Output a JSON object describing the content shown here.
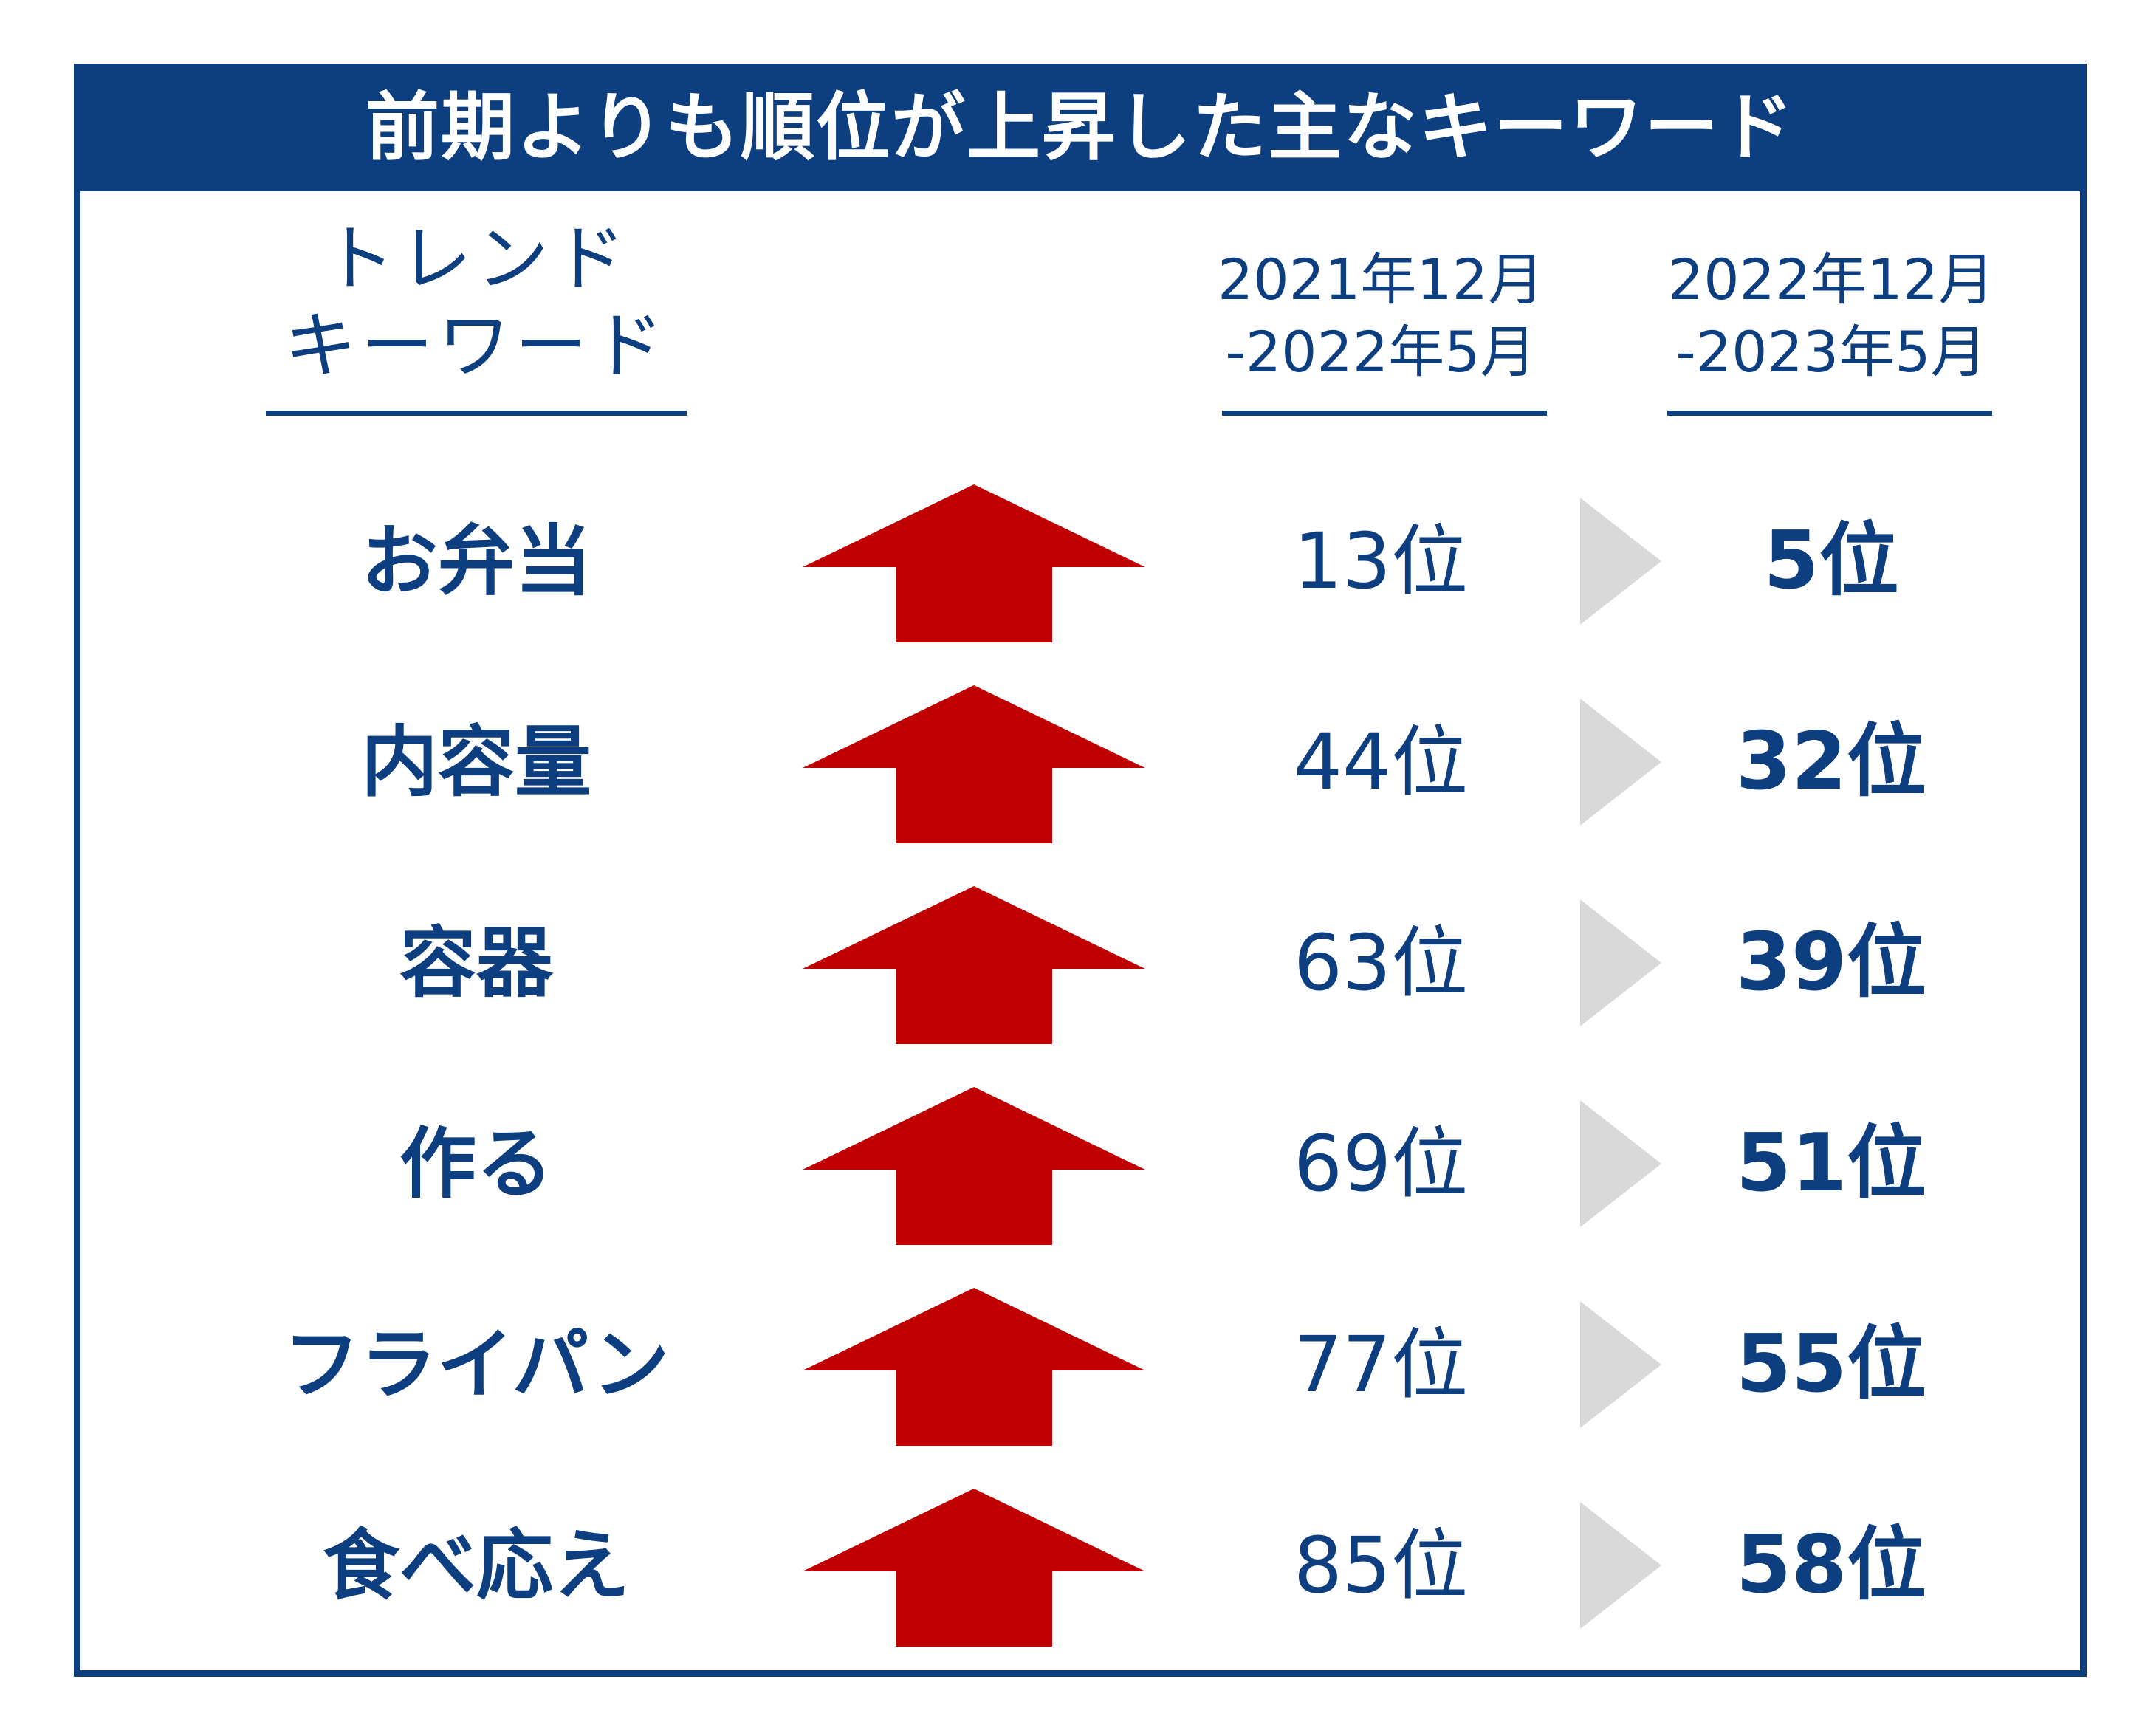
{
  "title": "前期よりも順位が上昇した主なキーワード",
  "headers": {
    "keyword": [
      "トレンド",
      "キーワード"
    ],
    "period1": [
      "2021年12月",
      "-2022年5月"
    ],
    "period2": [
      "2022年12月",
      "-2023年5月"
    ]
  },
  "icons": {
    "trend": "up-arrow-icon",
    "transition": "chevron-right-icon"
  },
  "colors": {
    "primary": "#0d3e80",
    "arrow": "#c00000",
    "chevron": "#d9d9d9"
  },
  "rows": [
    {
      "keyword": "お弁当",
      "prev": "13位",
      "current": "5位"
    },
    {
      "keyword": "内容量",
      "prev": "44位",
      "current": "32位"
    },
    {
      "keyword": "容器",
      "prev": "63位",
      "current": "39位"
    },
    {
      "keyword": "作る",
      "prev": "69位",
      "current": "51位"
    },
    {
      "keyword": "フライパン",
      "prev": "77位",
      "current": "55位"
    },
    {
      "keyword": "食べ応え",
      "prev": "85位",
      "current": "58位"
    }
  ]
}
